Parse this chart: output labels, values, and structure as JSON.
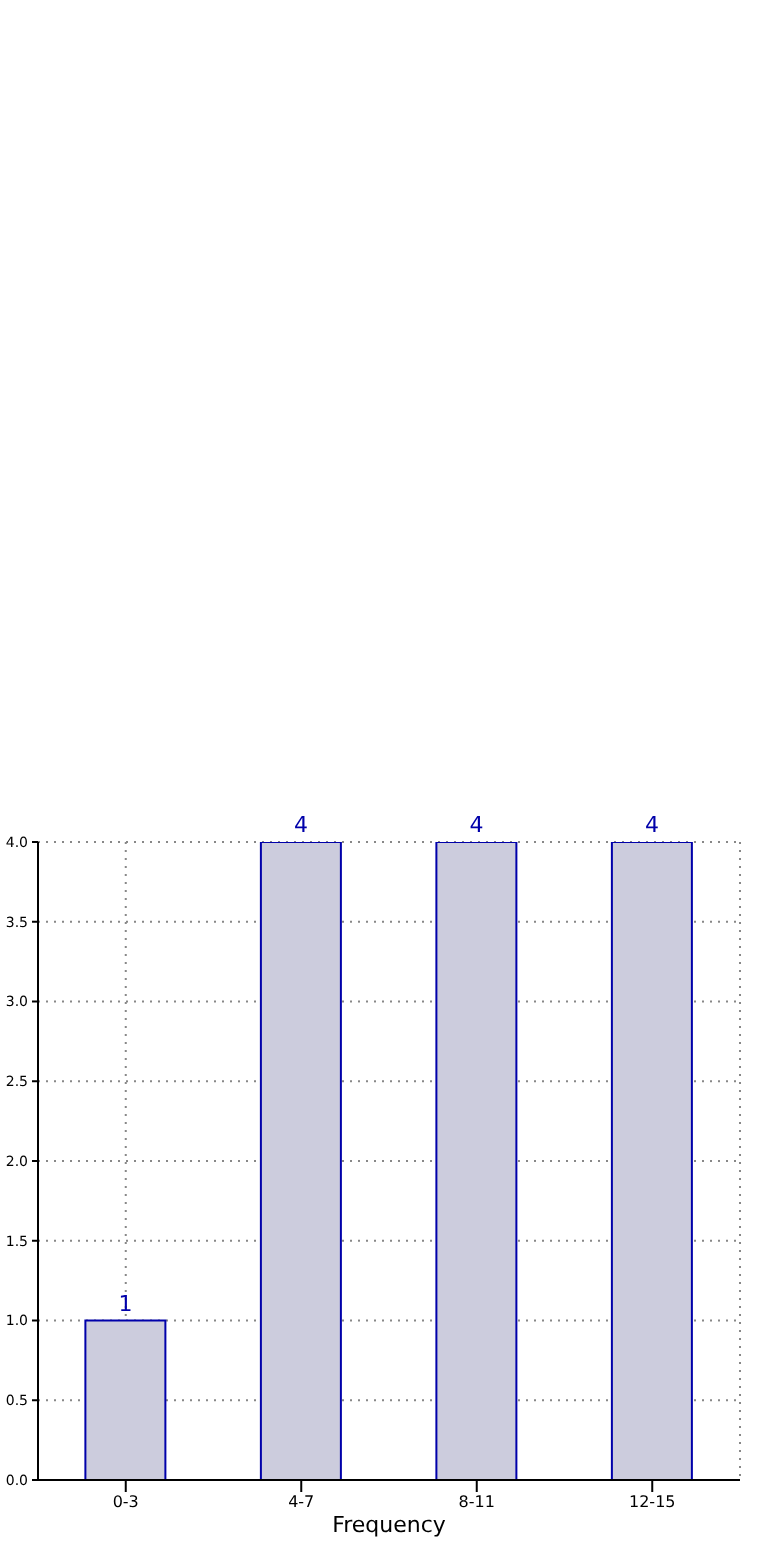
{
  "chart_data": {
    "type": "bar",
    "xlabel": "Frequency",
    "categories": [
      "0-3",
      "4-7",
      "8-11",
      "12-15"
    ],
    "series": [
      {
        "color": "#ccccdd",
        "values": [
          1,
          4,
          4,
          4
        ]
      }
    ],
    "ylim": [
      0,
      4
    ],
    "yticks": [
      {
        "value": 0,
        "label": "0.0"
      },
      {
        "value": 0.5,
        "label": "0.5"
      },
      {
        "value": 1,
        "label": "1.0"
      },
      {
        "value": 1.5,
        "label": "1.5"
      },
      {
        "value": 2,
        "label": "2.0"
      },
      {
        "value": 2.5,
        "label": "2.5"
      },
      {
        "value": 3,
        "label": "3.0"
      },
      {
        "value": 3.5,
        "label": "3.5"
      },
      {
        "value": 4,
        "label": "4.0"
      }
    ],
    "grid": true,
    "data_labels": true
  }
}
